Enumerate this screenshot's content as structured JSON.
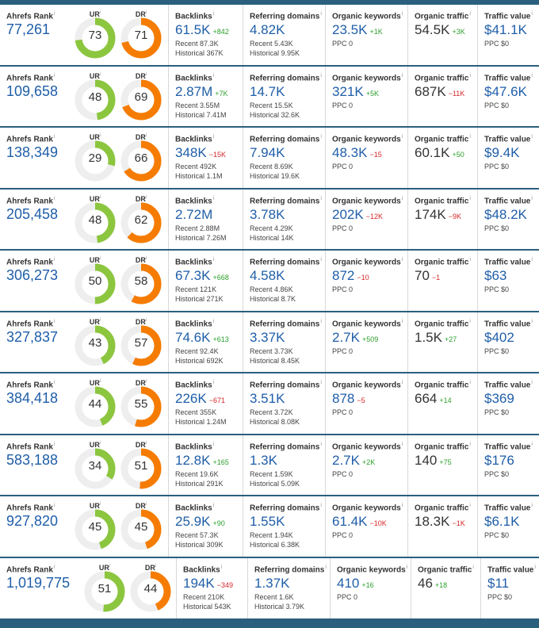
{
  "labels": {
    "ahrefs_rank": "Ahrefs Rank",
    "ur": "UR",
    "dr": "DR",
    "backlinks": "Backlinks",
    "referring_domains": "Referring domains",
    "organic_keywords": "Organic keywords",
    "organic_traffic": "Organic traffic",
    "traffic_value": "Traffic value",
    "info_mark": "i",
    "recent_prefix": "Recent",
    "historical_prefix": "Historical",
    "ppc_prefix": "PPC"
  },
  "colors": {
    "ur_ring": "#8cc63f",
    "dr_ring": "#f57c00",
    "ring_track": "#eeeeee",
    "value_blue": "#1f5ea8",
    "positive": "#2ca02c",
    "negative": "#d62728",
    "frame": "#2b5f7e"
  },
  "rows": [
    {
      "rank": "77,261",
      "ur": 73,
      "dr": 71,
      "backlinks": {
        "value": "61.5K",
        "delta": "+842",
        "recent": "87.3K",
        "historical": "367K"
      },
      "referring": {
        "value": "4.82K",
        "delta": "",
        "recent": "5.43K",
        "historical": "9.95K"
      },
      "keywords": {
        "value": "23.5K",
        "delta": "+1K",
        "ppc": "0"
      },
      "traffic": {
        "value": "54.5K",
        "delta": "+3K"
      },
      "value": {
        "value": "$41.1K",
        "ppc": "$0"
      }
    },
    {
      "rank": "109,658",
      "ur": 48,
      "dr": 69,
      "backlinks": {
        "value": "2.87M",
        "delta": "+7K",
        "recent": "3.55M",
        "historical": "7.41M"
      },
      "referring": {
        "value": "14.7K",
        "delta": "",
        "recent": "15.5K",
        "historical": "32.6K"
      },
      "keywords": {
        "value": "321K",
        "delta": "+5K",
        "ppc": "0"
      },
      "traffic": {
        "value": "687K",
        "delta": "−11K"
      },
      "value": {
        "value": "$47.6K",
        "ppc": "$0"
      }
    },
    {
      "rank": "138,349",
      "ur": 29,
      "dr": 66,
      "backlinks": {
        "value": "348K",
        "delta": "−15K",
        "recent": "492K",
        "historical": "1.1M"
      },
      "referring": {
        "value": "7.94K",
        "delta": "",
        "recent": "8.69K",
        "historical": "19.6K"
      },
      "keywords": {
        "value": "48.3K",
        "delta": "−15",
        "ppc": "0"
      },
      "traffic": {
        "value": "60.1K",
        "delta": "+50"
      },
      "value": {
        "value": "$9.4K",
        "ppc": "$0"
      }
    },
    {
      "rank": "205,458",
      "ur": 48,
      "dr": 62,
      "backlinks": {
        "value": "2.72M",
        "delta": "",
        "recent": "2.88M",
        "historical": "7.26M"
      },
      "referring": {
        "value": "3.78K",
        "delta": "",
        "recent": "4.29K",
        "historical": "14K"
      },
      "keywords": {
        "value": "202K",
        "delta": "−12K",
        "ppc": "0"
      },
      "traffic": {
        "value": "174K",
        "delta": "−9K"
      },
      "value": {
        "value": "$48.2K",
        "ppc": "$0"
      }
    },
    {
      "rank": "306,273",
      "ur": 50,
      "dr": 58,
      "backlinks": {
        "value": "67.3K",
        "delta": "+668",
        "recent": "121K",
        "historical": "271K"
      },
      "referring": {
        "value": "4.58K",
        "delta": "",
        "recent": "4.86K",
        "historical": "8.7K"
      },
      "keywords": {
        "value": "872",
        "delta": "−10",
        "ppc": "0"
      },
      "traffic": {
        "value": "70",
        "delta": "−1"
      },
      "value": {
        "value": "$63",
        "ppc": "$0"
      }
    },
    {
      "rank": "327,837",
      "ur": 43,
      "dr": 57,
      "backlinks": {
        "value": "74.6K",
        "delta": "+613",
        "recent": "92.4K",
        "historical": "692K"
      },
      "referring": {
        "value": "3.37K",
        "delta": "",
        "recent": "3.73K",
        "historical": "8.45K"
      },
      "keywords": {
        "value": "2.7K",
        "delta": "+509",
        "ppc": "0"
      },
      "traffic": {
        "value": "1.5K",
        "delta": "+27"
      },
      "value": {
        "value": "$402",
        "ppc": "$0"
      }
    },
    {
      "rank": "384,418",
      "ur": 44,
      "dr": 55,
      "backlinks": {
        "value": "226K",
        "delta": "−671",
        "recent": "355K",
        "historical": "1.24M"
      },
      "referring": {
        "value": "3.51K",
        "delta": "",
        "recent": "3.72K",
        "historical": "8.08K"
      },
      "keywords": {
        "value": "878",
        "delta": "−5",
        "ppc": "0"
      },
      "traffic": {
        "value": "664",
        "delta": "+14"
      },
      "value": {
        "value": "$369",
        "ppc": "$0"
      }
    },
    {
      "rank": "583,188",
      "ur": 34,
      "dr": 51,
      "backlinks": {
        "value": "12.8K",
        "delta": "+165",
        "recent": "19.6K",
        "historical": "291K"
      },
      "referring": {
        "value": "1.3K",
        "delta": "",
        "recent": "1.59K",
        "historical": "5.09K"
      },
      "keywords": {
        "value": "2.7K",
        "delta": "+2K",
        "ppc": "0"
      },
      "traffic": {
        "value": "140",
        "delta": "+75"
      },
      "value": {
        "value": "$176",
        "ppc": "$0"
      }
    },
    {
      "rank": "927,820",
      "ur": 45,
      "dr": 45,
      "backlinks": {
        "value": "25.9K",
        "delta": "+90",
        "recent": "57.3K",
        "historical": "309K"
      },
      "referring": {
        "value": "1.55K",
        "delta": "",
        "recent": "1.94K",
        "historical": "6.38K"
      },
      "keywords": {
        "value": "61.4K",
        "delta": "−10K",
        "ppc": "0"
      },
      "traffic": {
        "value": "18.3K",
        "delta": "−1K"
      },
      "value": {
        "value": "$6.1K",
        "ppc": "$0"
      }
    },
    {
      "rank": "1,019,775",
      "ur": 51,
      "dr": 44,
      "backlinks": {
        "value": "194K",
        "delta": "−349",
        "recent": "210K",
        "historical": "543K"
      },
      "referring": {
        "value": "1.37K",
        "delta": "",
        "recent": "1.6K",
        "historical": "3.79K"
      },
      "keywords": {
        "value": "410",
        "delta": "+16",
        "ppc": "0"
      },
      "traffic": {
        "value": "46",
        "delta": "+18"
      },
      "value": {
        "value": "$11",
        "ppc": "$0"
      }
    }
  ]
}
